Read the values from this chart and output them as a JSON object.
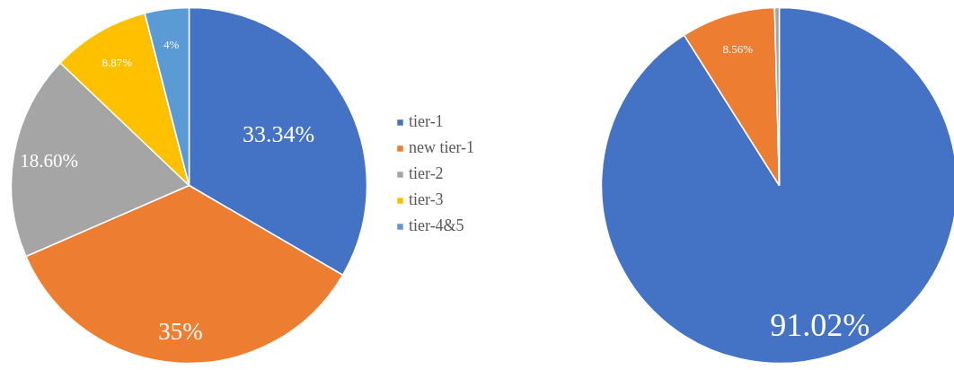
{
  "chart_data": [
    {
      "type": "pie",
      "categories": [
        "tier-1",
        "new tier-1",
        "tier-2",
        "tier-3",
        "tier-4&5"
      ],
      "values": [
        33.34,
        35,
        18.6,
        8.87,
        4
      ],
      "colors": [
        "#4472c4",
        "#ed7d31",
        "#a5a5a5",
        "#ffc000",
        "#5b9bd5"
      ],
      "value_labels": [
        "33.34%",
        "35%",
        "18.60%",
        "8.87%",
        "4%"
      ],
      "legend": "right"
    },
    {
      "type": "pie",
      "categories": [
        null,
        null,
        null
      ],
      "values": [
        91.02,
        8.56,
        0.42
      ],
      "colors": [
        "#4472c4",
        "#ed7d31",
        "#a5a5a5"
      ],
      "value_labels": [
        "91.02%",
        "8.56%",
        null
      ]
    }
  ]
}
